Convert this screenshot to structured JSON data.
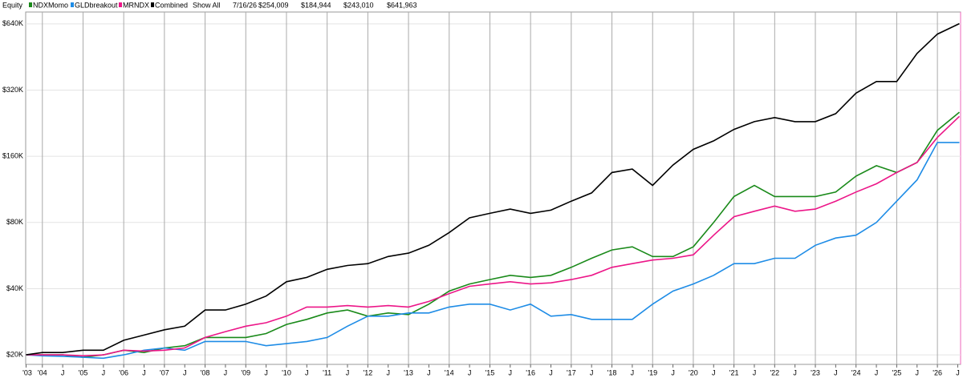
{
  "chart_data": {
    "type": "line",
    "title": "Equity",
    "show_all": "Show All",
    "readout": {
      "date": "7/16/26",
      "labels": [
        "$254,009",
        "$184,944",
        "$243,010",
        "$641,963"
      ]
    },
    "readout_date_color": "#e0148c",
    "log_scale": true,
    "grid": true,
    "x": [
      2003.6,
      2004,
      2004.5,
      2005,
      2005.5,
      2006,
      2006.5,
      2007,
      2007.5,
      2008,
      2008.5,
      2009,
      2009.5,
      2010,
      2010.5,
      2011,
      2011.5,
      2012,
      2012.5,
      2013,
      2013.5,
      2014,
      2014.5,
      2015,
      2015.5,
      2016,
      2016.5,
      2017,
      2017.5,
      2018,
      2018.5,
      2019,
      2019.5,
      2020,
      2020.5,
      2021,
      2021.5,
      2022,
      2022.5,
      2023,
      2023.5,
      2024,
      2024.5,
      2025,
      2025.5,
      2026,
      2026.54
    ],
    "series": [
      {
        "name": "NDXMomo",
        "color": "#1a8a1a",
        "values": [
          20000,
          20000,
          20000,
          19500,
          20000,
          21000,
          20500,
          21500,
          22000,
          24000,
          24000,
          24000,
          25000,
          27500,
          29000,
          31000,
          32000,
          30000,
          31000,
          30500,
          34000,
          39000,
          42000,
          44000,
          46000,
          45000,
          46000,
          50000,
          55000,
          60000,
          62000,
          56000,
          56000,
          62000,
          80000,
          105000,
          118000,
          105000,
          105000,
          105000,
          110000,
          130000,
          145000,
          135000,
          150000,
          210000,
          254009
        ]
      },
      {
        "name": "GLDbreakout",
        "color": "#1e8ce6",
        "values": [
          20000,
          19800,
          19700,
          19500,
          19300,
          20000,
          21000,
          21500,
          21000,
          23000,
          23000,
          23000,
          22000,
          22500,
          23000,
          24000,
          27000,
          30000,
          30000,
          31000,
          31000,
          33000,
          34000,
          34000,
          32000,
          34000,
          30000,
          30500,
          29000,
          29000,
          29000,
          34000,
          39000,
          42000,
          46000,
          52000,
          52000,
          55000,
          55000,
          63000,
          68000,
          70000,
          80000,
          100000,
          125000,
          184944,
          184944
        ]
      },
      {
        "name": "MRNDX",
        "color": "#ec1688",
        "values": [
          20000,
          20000,
          20000,
          19800,
          20000,
          21000,
          20800,
          21000,
          21500,
          24000,
          25500,
          27000,
          28000,
          30000,
          33000,
          33000,
          33500,
          33000,
          33500,
          33000,
          35000,
          38000,
          41000,
          42000,
          43000,
          42000,
          42500,
          44000,
          46000,
          50000,
          52000,
          54000,
          55000,
          57000,
          70000,
          85000,
          90000,
          95000,
          90000,
          92000,
          100000,
          110000,
          120000,
          135000,
          150000,
          195000,
          243010
        ]
      },
      {
        "name": "Combined",
        "color": "#000000",
        "values": [
          20000,
          20500,
          20500,
          21000,
          21000,
          23300,
          24600,
          26000,
          27000,
          32000,
          32000,
          34000,
          37000,
          43000,
          45000,
          49000,
          51000,
          52000,
          56000,
          58000,
          63000,
          72000,
          84000,
          88000,
          92000,
          88000,
          91000,
          100000,
          109000,
          135000,
          140000,
          118000,
          146000,
          172000,
          188000,
          212000,
          230000,
          240000,
          230000,
          230000,
          250000,
          310000,
          350000,
          350000,
          470000,
          575000,
          641963
        ]
      }
    ],
    "xlim": [
      2003.59,
      2026.57
    ],
    "ylim": [
      18100,
      725000
    ],
    "yticks": [
      {
        "value": 20000,
        "label": "$20K"
      },
      {
        "value": 40000,
        "label": "$40K"
      },
      {
        "value": 80000,
        "label": "$80K"
      },
      {
        "value": 160000,
        "label": "$160K"
      },
      {
        "value": 320000,
        "label": "$320K"
      },
      {
        "value": 640000,
        "label": "$640K"
      }
    ],
    "xticks": [
      {
        "value": 2003.6,
        "label": "'03"
      },
      {
        "value": 2004,
        "label": "'04"
      },
      {
        "value": 2004.5,
        "label": "J"
      },
      {
        "value": 2005,
        "label": "'05"
      },
      {
        "value": 2005.5,
        "label": "J"
      },
      {
        "value": 2006,
        "label": "'06"
      },
      {
        "value": 2006.5,
        "label": "J"
      },
      {
        "value": 2007,
        "label": "'07"
      },
      {
        "value": 2007.5,
        "label": "J"
      },
      {
        "value": 2008,
        "label": "'08"
      },
      {
        "value": 2008.5,
        "label": "J"
      },
      {
        "value": 2009,
        "label": "'09"
      },
      {
        "value": 2009.5,
        "label": "J"
      },
      {
        "value": 2010,
        "label": "'10"
      },
      {
        "value": 2010.5,
        "label": "J"
      },
      {
        "value": 2011,
        "label": "'11"
      },
      {
        "value": 2011.5,
        "label": "J"
      },
      {
        "value": 2012,
        "label": "'12"
      },
      {
        "value": 2012.5,
        "label": "J"
      },
      {
        "value": 2013,
        "label": "'13"
      },
      {
        "value": 2013.5,
        "label": "J"
      },
      {
        "value": 2014,
        "label": "'14"
      },
      {
        "value": 2014.5,
        "label": "J"
      },
      {
        "value": 2015,
        "label": "'15"
      },
      {
        "value": 2015.5,
        "label": "J"
      },
      {
        "value": 2016,
        "label": "'16"
      },
      {
        "value": 2016.5,
        "label": "J"
      },
      {
        "value": 2017,
        "label": "'17"
      },
      {
        "value": 2017.5,
        "label": "J"
      },
      {
        "value": 2018,
        "label": "'18"
      },
      {
        "value": 2018.5,
        "label": "J"
      },
      {
        "value": 2019,
        "label": "'19"
      },
      {
        "value": 2019.5,
        "label": "J"
      },
      {
        "value": 2020,
        "label": "'20"
      },
      {
        "value": 2020.5,
        "label": "J"
      },
      {
        "value": 2021,
        "label": "'21"
      },
      {
        "value": 2021.5,
        "label": "J"
      },
      {
        "value": 2022,
        "label": "'22"
      },
      {
        "value": 2022.5,
        "label": "J"
      },
      {
        "value": 2023,
        "label": "'23"
      },
      {
        "value": 2023.5,
        "label": "J"
      },
      {
        "value": 2024,
        "label": "'24"
      },
      {
        "value": 2024.5,
        "label": "J"
      },
      {
        "value": 2025,
        "label": "'25"
      },
      {
        "value": 2025.5,
        "label": "J"
      },
      {
        "value": 2026,
        "label": "'26"
      },
      {
        "value": 2026.5,
        "label": "J"
      }
    ]
  }
}
